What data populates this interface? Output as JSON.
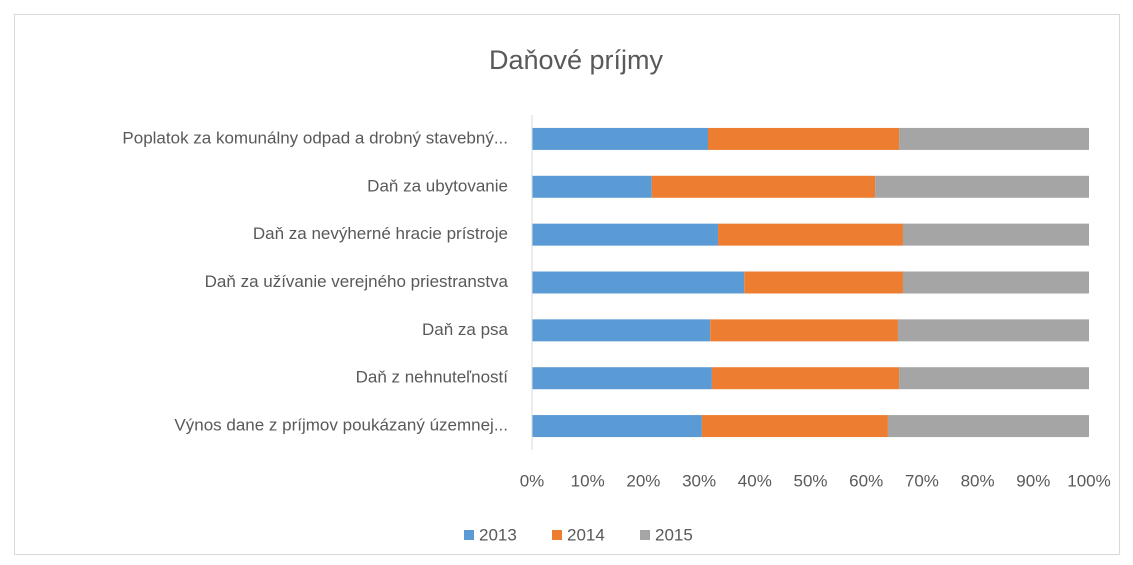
{
  "chart_data": {
    "type": "stacked_barh",
    "title": "Daňové príjmy",
    "categories": [
      "Poplatok za komunálny odpad a drobný stavebný...",
      "Daň za ubytovanie",
      "Daň za nevýherné hracie prístroje",
      "Daň za užívanie verejného priestranstva",
      "Daň za psa",
      "Daň z nehnuteľností",
      "Výnos dane z príjmov poukázaný územnej..."
    ],
    "series": [
      {
        "name": "2013",
        "color": "#5b9bd5",
        "values": [
          31.6,
          21.5,
          33.4,
          38.1,
          32.0,
          32.3,
          30.5
        ]
      },
      {
        "name": "2014",
        "color": "#ed7d31",
        "values": [
          34.3,
          40.1,
          33.2,
          28.5,
          33.7,
          33.6,
          33.4
        ]
      },
      {
        "name": "2015",
        "color": "#a5a5a5",
        "values": [
          34.1,
          38.4,
          33.4,
          33.4,
          34.3,
          34.1,
          36.1
        ]
      }
    ],
    "xlim": [
      0,
      100
    ],
    "xticks": [
      {
        "value": 0,
        "label": "0%"
      },
      {
        "value": 10,
        "label": "10%"
      },
      {
        "value": 20,
        "label": "20%"
      },
      {
        "value": 30,
        "label": "30%"
      },
      {
        "value": 40,
        "label": "40%"
      },
      {
        "value": 50,
        "label": "50%"
      },
      {
        "value": 60,
        "label": "60%"
      },
      {
        "value": 70,
        "label": "70%"
      },
      {
        "value": 80,
        "label": "80%"
      },
      {
        "value": 90,
        "label": "90%"
      },
      {
        "value": 100,
        "label": "100%"
      }
    ],
    "grid": false,
    "legend": "bottom"
  }
}
